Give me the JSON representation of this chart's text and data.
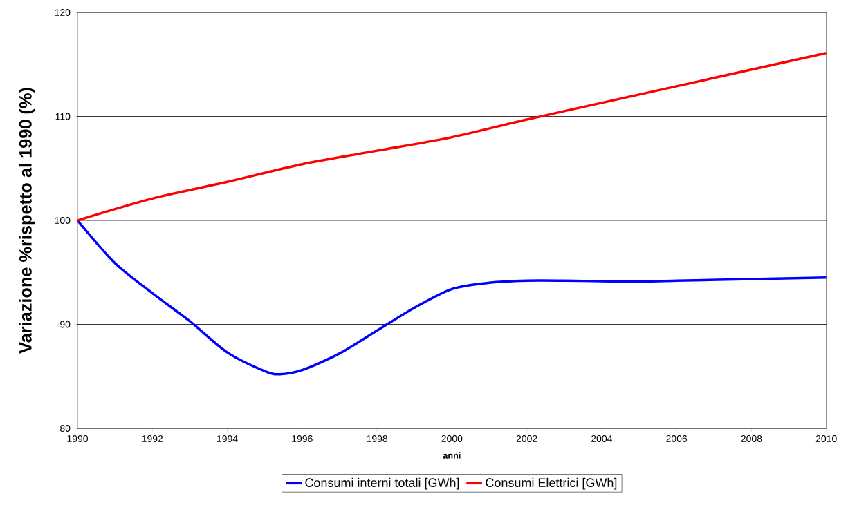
{
  "chart_data": {
    "type": "line",
    "xlabel": "anni",
    "ylabel": "Variazione %rispetto al 1990 (%)",
    "xlim": [
      1990,
      2010
    ],
    "xticks": [
      1990,
      1992,
      1994,
      1996,
      1998,
      2000,
      2002,
      2004,
      2006,
      2008,
      2010
    ],
    "ylim": [
      80,
      120
    ],
    "yticks": [
      80,
      90,
      100,
      110,
      120
    ],
    "grid": "y",
    "legend": "bottom",
    "marker": "none",
    "line_style": "solid",
    "series": [
      {
        "name": "Consumi interni totali [GWh]",
        "color": "#0000ff",
        "x": [
          1990,
          1991,
          1992,
          1993,
          1994,
          1995,
          1995.4,
          1996,
          1997,
          1998,
          1999,
          2000,
          2001,
          2002,
          2003,
          2004,
          2005,
          2006,
          2008,
          2010
        ],
        "values": [
          100,
          95.9,
          93.0,
          90.3,
          87.3,
          85.5,
          85.2,
          85.6,
          87.2,
          89.4,
          91.6,
          93.4,
          94.0,
          94.2,
          94.2,
          94.15,
          94.1,
          94.2,
          94.35,
          94.5
        ]
      },
      {
        "name": "Consumi Elettrici [GWh]",
        "color": "#ff0000",
        "x": [
          1990,
          1992,
          1994,
          1996,
          1998,
          2000,
          2002,
          2004,
          2006,
          2008,
          2010
        ],
        "values": [
          100,
          102.1,
          103.7,
          105.4,
          106.7,
          108.0,
          109.7,
          111.3,
          112.9,
          114.5,
          116.1
        ]
      }
    ]
  }
}
